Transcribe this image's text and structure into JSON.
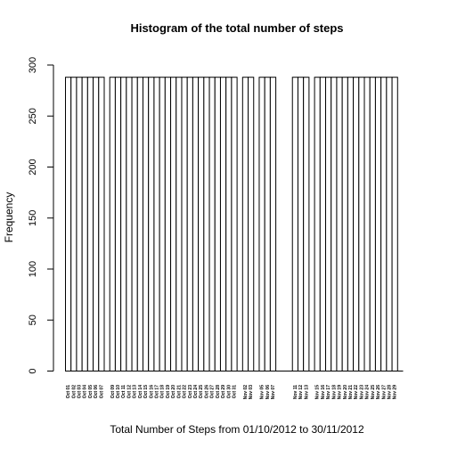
{
  "chart_data": {
    "type": "bar",
    "title": "Histogram of the total number of steps",
    "xlabel": "Total Number of Steps from 01/10/2012 to 30/11/2012",
    "ylabel": "Frequency",
    "ylim": [
      0,
      300
    ],
    "yticks": [
      "0",
      "50",
      "100",
      "150",
      "200",
      "250",
      "300"
    ],
    "grid": false,
    "categories": [
      "Oct 01",
      "Oct 02",
      "Oct 03",
      "Oct 04",
      "Oct 05",
      "Oct 06",
      "Oct 07",
      "Oct 08",
      "Oct 09",
      "Oct 10",
      "Oct 11",
      "Oct 12",
      "Oct 13",
      "Oct 14",
      "Oct 15",
      "Oct 16",
      "Oct 17",
      "Oct 18",
      "Oct 19",
      "Oct 20",
      "Oct 21",
      "Oct 22",
      "Oct 23",
      "Oct 24",
      "Oct 25",
      "Oct 26",
      "Oct 27",
      "Oct 28",
      "Oct 29",
      "Oct 30",
      "Oct 31",
      "Nov 01",
      "Nov 02",
      "Nov 03",
      "Nov 04",
      "Nov 05",
      "Nov 06",
      "Nov 07",
      "Nov 08",
      "Nov 09",
      "Nov 10",
      "Nov 11",
      "Nov 12",
      "Nov 13",
      "Nov 14",
      "Nov 15",
      "Nov 16",
      "Nov 17",
      "Nov 18",
      "Nov 19",
      "Nov 20",
      "Nov 21",
      "Nov 22",
      "Nov 23",
      "Nov 24",
      "Nov 25",
      "Nov 26",
      "Nov 27",
      "Nov 28",
      "Nov 29",
      "Nov 30"
    ],
    "values": [
      288,
      288,
      288,
      288,
      288,
      288,
      288,
      0,
      288,
      288,
      288,
      288,
      288,
      288,
      288,
      288,
      288,
      288,
      288,
      288,
      288,
      288,
      288,
      288,
      288,
      288,
      288,
      288,
      288,
      288,
      288,
      0,
      288,
      288,
      0,
      288,
      288,
      288,
      0,
      0,
      0,
      288,
      288,
      288,
      0,
      288,
      288,
      288,
      288,
      288,
      288,
      288,
      288,
      288,
      288,
      288,
      288,
      288,
      288,
      288,
      0
    ]
  }
}
